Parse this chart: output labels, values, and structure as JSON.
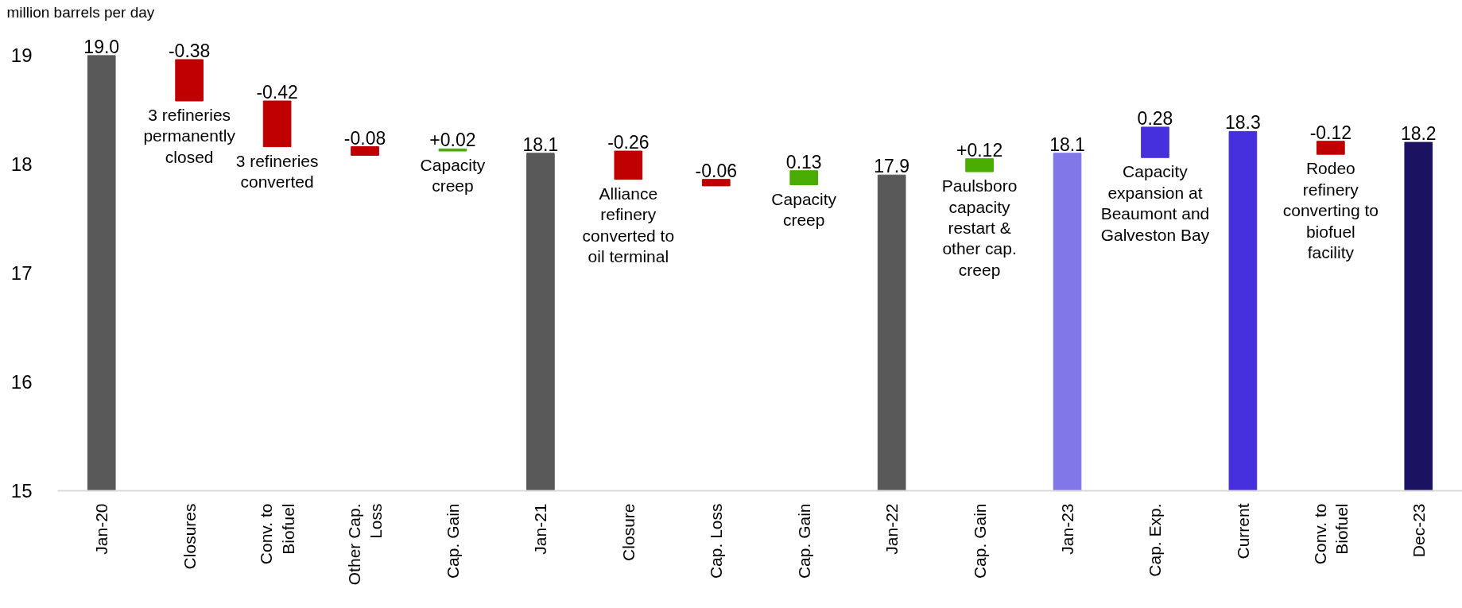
{
  "chart_data": {
    "type": "bar",
    "ylabel": "million barrels per day",
    "categories": [
      "Jan-20",
      "Closures",
      "Conv. to Biofuel",
      "Other Cap. Loss",
      "Cap. Gain",
      "Jan-21",
      "Closure",
      "Cap. Loss",
      "Cap. Gain",
      "Jan-22",
      "Cap. Gain",
      "Jan-23",
      "Cap. Exp.",
      "Current",
      "Conv. to Biofuel",
      "Dec-23"
    ],
    "values": [
      19.0,
      -0.38,
      -0.42,
      -0.08,
      0.02,
      18.1,
      -0.26,
      -0.06,
      0.13,
      17.9,
      0.12,
      18.1,
      0.28,
      18.3,
      -0.12,
      18.2
    ],
    "base": [
      null,
      18.96,
      18.58,
      18.16,
      18.12,
      null,
      18.12,
      17.86,
      17.81,
      null,
      17.93,
      null,
      18.06,
      null,
      18.21,
      null
    ],
    "colors": [
      "#595959",
      "#c00000",
      "#c00000",
      "#c00000",
      "#48ad00",
      "#595959",
      "#c00000",
      "#c00000",
      "#48ad00",
      "#595959",
      "#48ad00",
      "#8277e9",
      "#4630de",
      "#4630de",
      "#c00000",
      "#1c1262"
    ],
    "value_labels": [
      "19.0",
      "-0.38",
      "-0.42",
      "-0.08",
      "+0.02",
      "18.1",
      "-0.26",
      "-0.06",
      "0.13",
      "17.9",
      "+0.12",
      "18.1",
      "0.28",
      "18.3",
      "-0.12",
      "18.2"
    ],
    "ylim": [
      15,
      19
    ],
    "yticks": [
      15,
      16,
      17,
      18,
      19
    ],
    "annotations": [
      {
        "text": "3 refineries permanently closed",
        "y": 18.58
      },
      {
        "text": "3 refineries converted",
        "y": 18.16
      },
      {
        "text": "Capacity creep",
        "y": 18.12
      },
      {
        "text": "Alliance refinery converted to oil terminal",
        "y": 17.86
      },
      {
        "text": "Capacity creep",
        "y": 17.81
      },
      {
        "text": "Paulsboro capacity restart & other cap. creep",
        "y": 17.93
      },
      {
        "text": "Capacity expansion at Beaumont and Galveston Bay",
        "y": 18.06
      },
      {
        "text": "Rodeo refinery converting to biofuel facility",
        "y": 18.09
      }
    ]
  }
}
